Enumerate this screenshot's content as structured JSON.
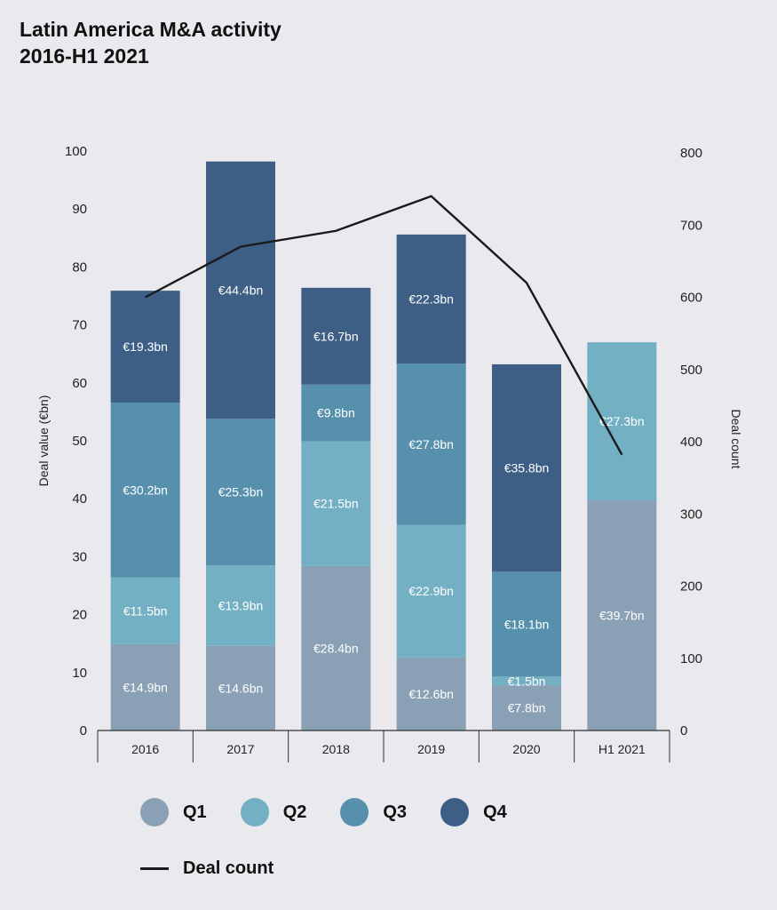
{
  "title": {
    "line1": "Latin America M&A activity",
    "line2": "2016-H1 2021"
  },
  "chart_data": {
    "type": "bar",
    "stacked": true,
    "categories": [
      "2016",
      "2017",
      "2018",
      "2019",
      "2020",
      "H1 2021"
    ],
    "series": [
      {
        "name": "Q1",
        "color": "#8aa0b5",
        "values": [
          14.9,
          14.6,
          28.4,
          12.6,
          7.8,
          39.7
        ],
        "labels": [
          "€14.9bn",
          "€14.6bn",
          "€28.4bn",
          "€12.6bn",
          "€7.8bn",
          "€39.7bn"
        ]
      },
      {
        "name": "Q2",
        "color": "#74b0c3",
        "values": [
          11.5,
          13.9,
          21.5,
          22.9,
          1.5,
          27.3
        ],
        "labels": [
          "€11.5bn",
          "€13.9bn",
          "€21.5bn",
          "€22.9bn",
          "€1.5bn",
          "€27.3bn"
        ]
      },
      {
        "name": "Q3",
        "color": "#5690ad",
        "values": [
          30.2,
          25.3,
          9.8,
          27.8,
          18.1,
          null
        ],
        "labels": [
          "€30.2bn",
          "€25.3bn",
          "€9.8bn",
          "€27.8bn",
          "€18.1bn",
          null
        ]
      },
      {
        "name": "Q4",
        "color": "#3d5f85",
        "values": [
          19.3,
          44.4,
          16.7,
          22.3,
          35.8,
          null
        ],
        "labels": [
          "€19.3bn",
          "€44.4bn",
          "€16.7bn",
          "€22.3bn",
          "€35.8bn",
          null
        ]
      }
    ],
    "line_series": {
      "name": "Deal count",
      "color": "#1a1a1a",
      "values": [
        600,
        670,
        692,
        740,
        620,
        382
      ]
    },
    "ylabel": "Deal value (€bn)",
    "y2label": "Deal count",
    "ylim": [
      0,
      100
    ],
    "y2lim": [
      0,
      800
    ],
    "yticks": [
      "0",
      "10",
      "20",
      "30",
      "40",
      "50",
      "60",
      "70",
      "80",
      "90",
      "100"
    ],
    "y2ticks": [
      "0",
      "100",
      "200",
      "300",
      "400",
      "500",
      "600",
      "700",
      "800"
    ],
    "grid": false,
    "legend_position": "bottom-left"
  },
  "legend": {
    "items": [
      "Q1",
      "Q2",
      "Q3",
      "Q4"
    ],
    "line_label": "Deal count"
  }
}
